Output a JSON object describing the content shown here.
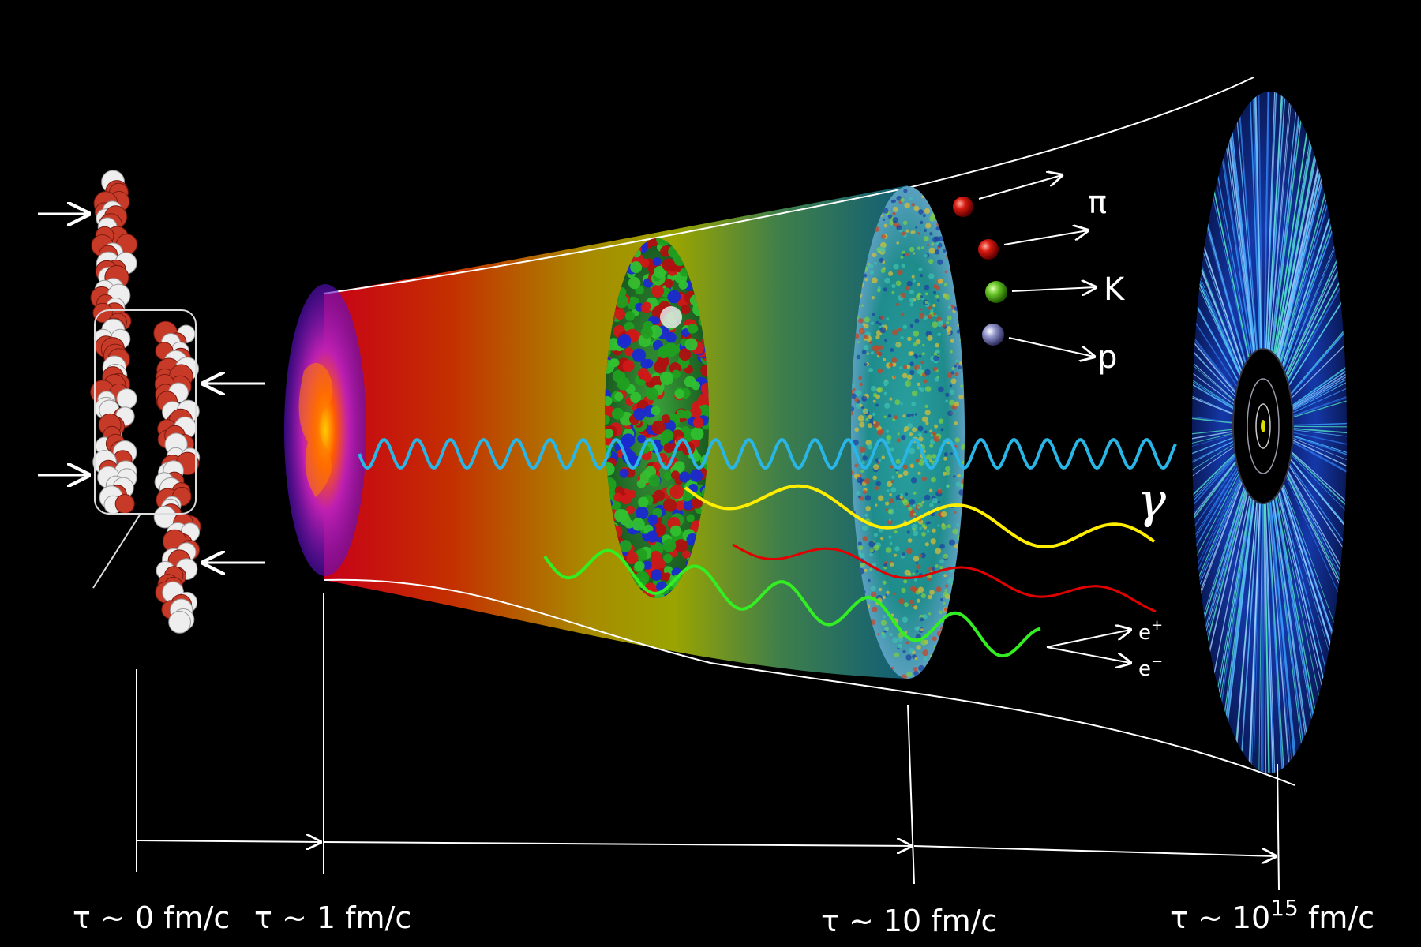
{
  "diagram": {
    "stages": [
      "τ ~ 0 fm/c",
      "τ ~ 1 fm/c",
      "τ ~ 10 fm/c",
      "τ ~ 10",
      "15",
      " fm/c"
    ],
    "particles": [
      "π",
      "K",
      "p"
    ],
    "leptons": {
      "positron": "e",
      "positron_sup": "+",
      "electron": "e",
      "electron_sup": "−"
    },
    "photon": "γ",
    "colors": {
      "background": "#000000",
      "photon_wave": "#29b6e6",
      "yellow_wave": "#ffee00",
      "red_wave": "#e00000",
      "green_wave": "#33ee22",
      "pion": "#c81010",
      "kaon": "#5fbe2a",
      "proton": "#8c90c8",
      "nucleus_red": "#c83a28",
      "nucleus_white": "#eeeeee"
    }
  }
}
